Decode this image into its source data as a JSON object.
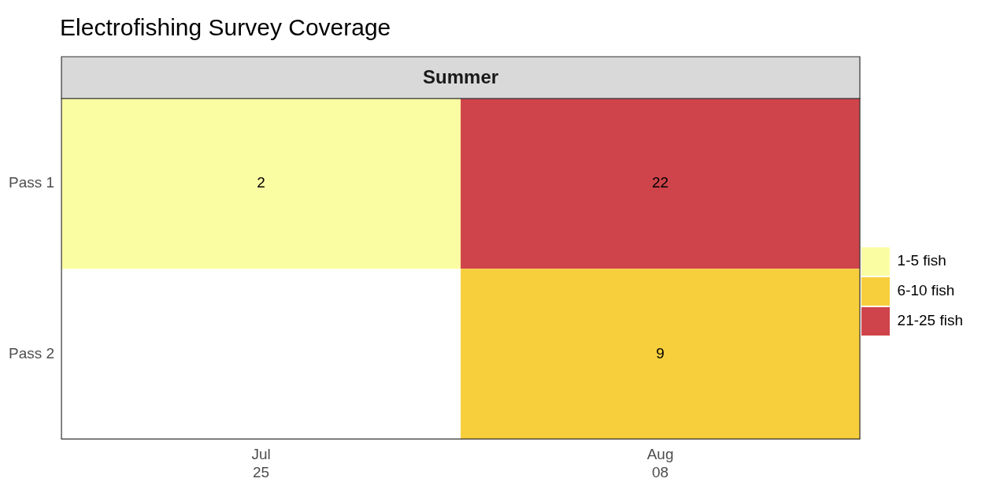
{
  "chart_data": {
    "type": "heatmap",
    "title": "Electrofishing Survey Coverage",
    "subtitle": "Summer",
    "categories": [
      "Jul\n25",
      "Aug\n08"
    ],
    "y_categories": [
      "Pass 1",
      "Pass 2"
    ],
    "cells": [
      [
        2,
        22
      ],
      [
        null,
        9
      ]
    ],
    "colors": [
      [
        "#fbfda3",
        "#cf444a"
      ],
      [
        null,
        "#f7cf3c"
      ]
    ],
    "series": [
      {
        "name": "1-5 fish",
        "color": "#fbfda3",
        "values": [
          null,
          null
        ]
      },
      {
        "name": "6-10 fish",
        "color": "#f7cf3c",
        "values": [
          null,
          null
        ]
      },
      {
        "name": "21-25 fish",
        "color": "#cf444a",
        "values": [
          null,
          null
        ]
      }
    ],
    "legend": "right",
    "data_labels": true
  }
}
